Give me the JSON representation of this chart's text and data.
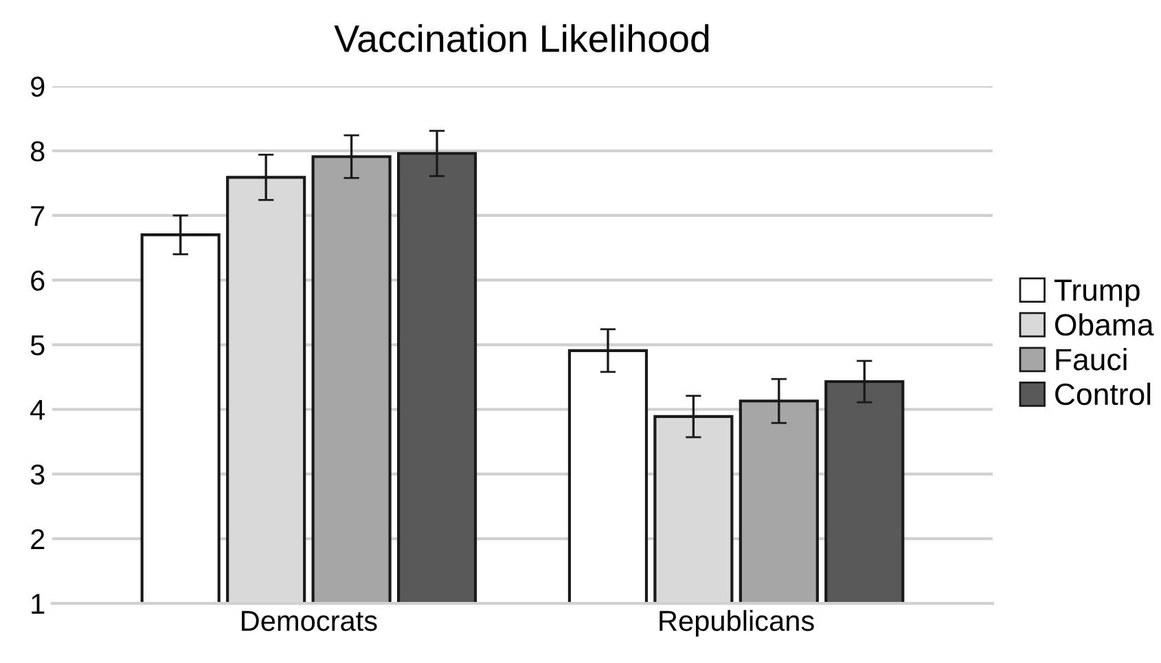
{
  "chart_data": {
    "type": "bar",
    "title": "Vaccination Likelihood",
    "categories": [
      "Democrats",
      "Republicans"
    ],
    "series": [
      {
        "name": "Trump",
        "color": "#ffffff",
        "values": [
          6.7,
          4.91
        ],
        "errors": [
          0.3,
          0.33
        ]
      },
      {
        "name": "Obama",
        "color": "#d9d9d9",
        "values": [
          7.59,
          3.89
        ],
        "errors": [
          0.35,
          0.32
        ]
      },
      {
        "name": "Fauci",
        "color": "#a6a6a6",
        "values": [
          7.91,
          4.13
        ],
        "errors": [
          0.33,
          0.34
        ]
      },
      {
        "name": "Control",
        "color": "#595959",
        "values": [
          7.96,
          4.43
        ],
        "errors": [
          0.35,
          0.32
        ]
      }
    ],
    "ylim": [
      1,
      9
    ],
    "yticks": [
      1,
      2,
      3,
      4,
      5,
      6,
      7,
      8,
      9
    ],
    "grid": "y",
    "legend": "right"
  }
}
